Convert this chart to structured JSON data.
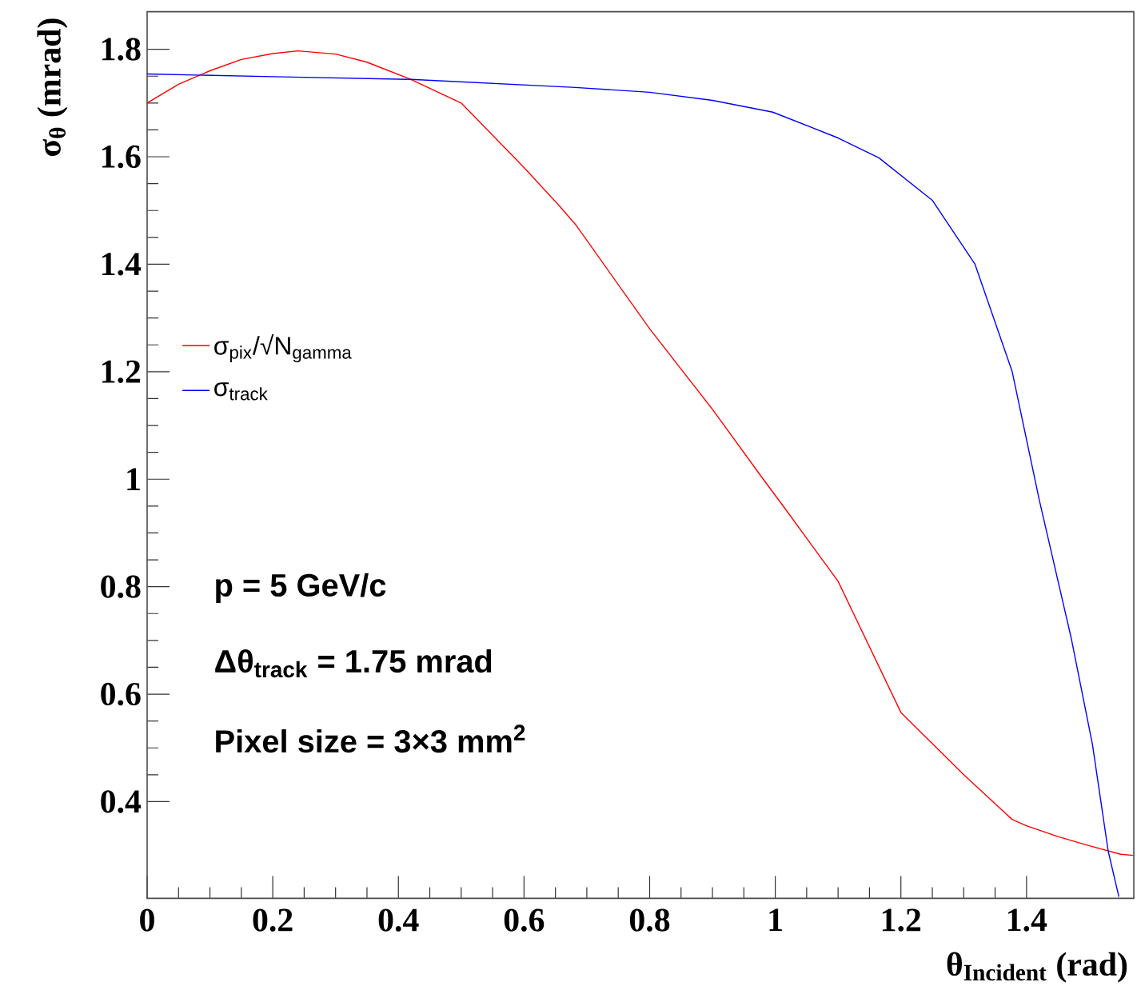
{
  "chart_data": {
    "type": "line",
    "xlabel": "θ$_{Incident}$ (rad)",
    "ylabel": "σ$_{θ}$ (mrad)",
    "xlim": [
      0,
      1.5708
    ],
    "ylim": [
      0.22,
      1.87
    ],
    "xticks": [
      0,
      0.2,
      0.4,
      0.6,
      0.8,
      1,
      1.2,
      1.4
    ],
    "yticks": [
      0.4,
      0.6,
      0.8,
      1,
      1.2,
      1.4,
      1.6,
      1.8
    ],
    "legend": "left",
    "series": [
      {
        "name": "σ$_{pix}$/√N$_{gamma}$",
        "color": "#ff0000",
        "x": [
          0,
          0.05,
          0.1,
          0.15,
          0.2,
          0.24,
          0.3,
          0.35,
          0.42,
          0.5,
          0.6,
          0.656,
          0.682,
          0.8,
          0.9,
          0.979,
          1.017,
          1.1,
          1.2,
          1.3,
          1.377,
          1.4,
          1.45,
          1.5,
          1.55,
          1.57
        ],
        "values": [
          1.7,
          1.735,
          1.76,
          1.781,
          1.792,
          1.797,
          1.791,
          1.776,
          1.744,
          1.7,
          1.58,
          1.509,
          1.474,
          1.28,
          1.13,
          1.003,
          0.943,
          0.81,
          0.566,
          0.45,
          0.367,
          0.355,
          0.335,
          0.318,
          0.302,
          0.3
        ]
      },
      {
        "name": "σ$_{track}$",
        "color": "#0000ff",
        "x": [
          0,
          0.2,
          0.42,
          0.682,
          0.8,
          0.9,
          0.996,
          1.1,
          1.165,
          1.25,
          1.318,
          1.377,
          1.42,
          1.471,
          1.505,
          1.53,
          1.547
        ],
        "values": [
          1.754,
          1.749,
          1.744,
          1.729,
          1.72,
          1.705,
          1.683,
          1.635,
          1.598,
          1.519,
          1.4,
          1.201,
          0.963,
          0.705,
          0.506,
          0.308,
          0.223
        ]
      }
    ],
    "annotations": [
      "p = 5 GeV/c",
      "Δθ$_{track}$ = 1.75 mrad",
      "Pixel size = 3×3 mm$^{2}$"
    ]
  }
}
